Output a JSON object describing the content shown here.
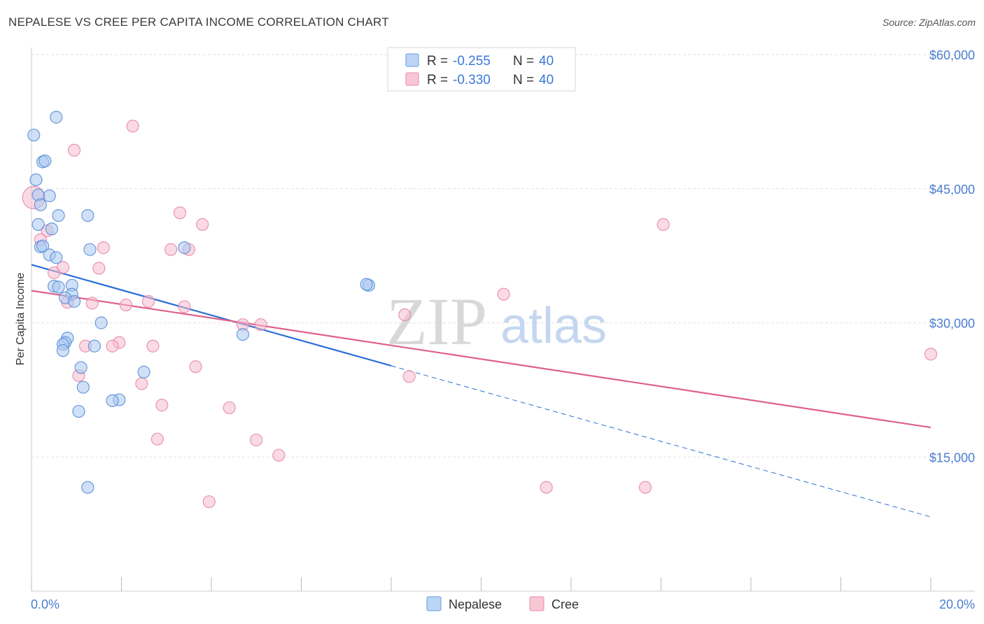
{
  "header": {
    "title": "NEPALESE VS CREE PER CAPITA INCOME CORRELATION CHART",
    "source": "Source: ZipAtlas.com"
  },
  "watermark": {
    "zip": "ZIP",
    "atlas": "atlas"
  },
  "colors": {
    "nepalese_fill": "#a9c8f0",
    "nepalese_stroke": "#5b8fd8",
    "nepalese_line": "#2a6fd6",
    "cree_fill": "#f6bcd0",
    "cree_stroke": "#e88aa8",
    "cree_line": "#e0608a",
    "axis_text": "#4a7fd0",
    "grid": "#e2e2e2"
  },
  "legend": {
    "rows": [
      {
        "r_label": "R =",
        "r_value": "-0.255",
        "n_label": "N =",
        "n_value": "40"
      },
      {
        "r_label": "R =",
        "r_value": "-0.330",
        "n_label": "N =",
        "n_value": "40"
      }
    ]
  },
  "bottom_legend": [
    "Nepalese",
    "Cree"
  ],
  "chart_data": {
    "type": "scatter",
    "title": "NEPALESE VS CREE PER CAPITA INCOME CORRELATION CHART",
    "xlabel": "",
    "ylabel": "Per Capita Income",
    "xlim": [
      0,
      20
    ],
    "ylim": [
      0,
      60000
    ],
    "x_tick_labels": [
      "0.0%",
      "20.0%"
    ],
    "y_ticks": [
      15000,
      30000,
      45000,
      60000
    ],
    "y_tick_labels": [
      "$15,000",
      "$30,000",
      "$45,000",
      "$60,000"
    ],
    "grid": true,
    "series": [
      {
        "name": "Nepalese",
        "r": -0.255,
        "n": 40,
        "trend": {
          "x0": 0,
          "y0": 36500,
          "x1_solid": 8,
          "y1_solid": 25200,
          "x1": 20,
          "y1": 8300
        },
        "points": [
          [
            0.05,
            51000
          ],
          [
            0.55,
            53000
          ],
          [
            0.25,
            48000
          ],
          [
            0.3,
            48100
          ],
          [
            0.1,
            46000
          ],
          [
            0.15,
            44300
          ],
          [
            0.4,
            44200
          ],
          [
            0.6,
            42000
          ],
          [
            1.25,
            42000
          ],
          [
            0.15,
            41000
          ],
          [
            0.45,
            40500
          ],
          [
            0.2,
            38500
          ],
          [
            0.25,
            38600
          ],
          [
            1.3,
            38200
          ],
          [
            3.4,
            38400
          ],
          [
            0.4,
            37600
          ],
          [
            0.55,
            37300
          ],
          [
            0.9,
            34200
          ],
          [
            0.5,
            34100
          ],
          [
            0.6,
            34000
          ],
          [
            7.5,
            34200
          ],
          [
            0.9,
            33200
          ],
          [
            0.75,
            32800
          ],
          [
            0.95,
            32400
          ],
          [
            1.55,
            30000
          ],
          [
            4.7,
            28700
          ],
          [
            0.8,
            28300
          ],
          [
            0.75,
            27800
          ],
          [
            0.7,
            27600
          ],
          [
            1.4,
            27400
          ],
          [
            0.7,
            26900
          ],
          [
            1.1,
            25000
          ],
          [
            2.5,
            24500
          ],
          [
            1.15,
            22800
          ],
          [
            1.95,
            21400
          ],
          [
            1.8,
            21300
          ],
          [
            1.05,
            20100
          ],
          [
            1.25,
            11600
          ],
          [
            7.45,
            34300
          ],
          [
            0.2,
            43200
          ]
        ]
      },
      {
        "name": "Cree",
        "r": -0.33,
        "n": 40,
        "trend": {
          "x0": 0,
          "y0": 33600,
          "x1": 20,
          "y1": 18300
        },
        "points": [
          [
            0.05,
            44000
          ],
          [
            2.25,
            52000
          ],
          [
            0.95,
            49300
          ],
          [
            3.3,
            42300
          ],
          [
            3.8,
            41000
          ],
          [
            14.05,
            41000
          ],
          [
            0.35,
            40300
          ],
          [
            0.2,
            39300
          ],
          [
            1.6,
            38400
          ],
          [
            3.1,
            38200
          ],
          [
            3.5,
            38200
          ],
          [
            0.7,
            36200
          ],
          [
            1.5,
            36100
          ],
          [
            0.5,
            35600
          ],
          [
            0.8,
            32300
          ],
          [
            1.35,
            32200
          ],
          [
            2.6,
            32400
          ],
          [
            2.1,
            32000
          ],
          [
            3.4,
            31800
          ],
          [
            10.5,
            33200
          ],
          [
            8.3,
            30900
          ],
          [
            4.7,
            29800
          ],
          [
            5.1,
            29800
          ],
          [
            1.95,
            27800
          ],
          [
            1.8,
            27400
          ],
          [
            2.7,
            27400
          ],
          [
            1.2,
            27400
          ],
          [
            3.65,
            25100
          ],
          [
            1.05,
            24100
          ],
          [
            8.4,
            24000
          ],
          [
            2.45,
            23200
          ],
          [
            2.9,
            20800
          ],
          [
            4.4,
            20500
          ],
          [
            2.8,
            17000
          ],
          [
            5.0,
            16900
          ],
          [
            5.5,
            15200
          ],
          [
            3.95,
            10000
          ],
          [
            11.45,
            11600
          ],
          [
            13.65,
            11600
          ],
          [
            20.0,
            26500
          ]
        ]
      }
    ]
  }
}
